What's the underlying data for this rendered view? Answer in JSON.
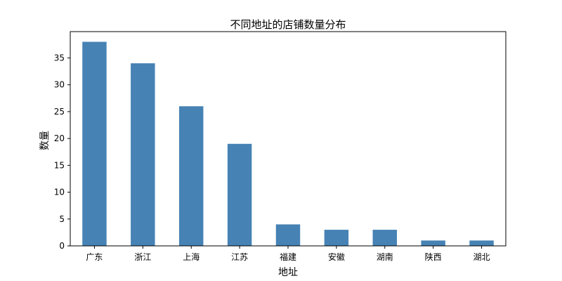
{
  "chart_data": {
    "type": "bar",
    "title": "不同地址的店铺数量分布",
    "xlabel": "地址",
    "ylabel": "数量",
    "categories": [
      "广东",
      "浙江",
      "上海",
      "江苏",
      "福建",
      "安徽",
      "湖南",
      "陕西",
      "湖北"
    ],
    "values": [
      38,
      34,
      26,
      19,
      4,
      3,
      3,
      1,
      1
    ],
    "ylim": [
      0,
      39.9
    ],
    "yticks": [
      0,
      5,
      10,
      15,
      20,
      25,
      30,
      35
    ],
    "grid": false,
    "bar_color": "#4682b4"
  }
}
